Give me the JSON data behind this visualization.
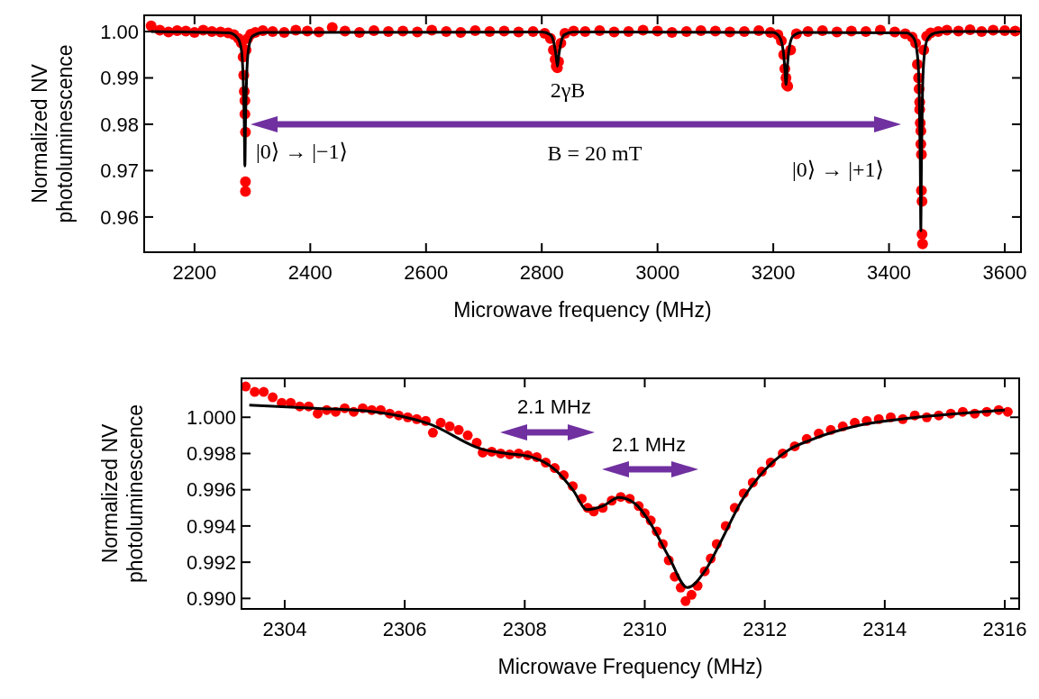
{
  "chart_data": [
    {
      "type": "scatter",
      "xlabel": "Microwave frequency (MHz)",
      "ylabel": "Normalized NV photoluminescence",
      "xlim": [
        2113,
        3628
      ],
      "xticks": [
        2200,
        2400,
        2600,
        2800,
        3000,
        3200,
        3400,
        3600
      ],
      "ylim": [
        0.9524,
        1.0035
      ],
      "yticks": [
        {
          "value": 0.96,
          "label": "0.96"
        },
        {
          "value": 0.97,
          "label": "0.97"
        },
        {
          "value": 0.98,
          "label": "0.98"
        },
        {
          "value": 0.99,
          "label": "0.99"
        },
        {
          "value": 1.0,
          "label": "1.00"
        }
      ],
      "annotations": [
        "2γB",
        "B = 20 mT",
        "|0⟩ → |−1⟩",
        "|0⟩ → |+1⟩"
      ],
      "series": [
        {
          "marker": "circle",
          "color": "#ff0000",
          "x": [
            2125,
            2140,
            2155,
            2170,
            2185,
            2200,
            2215,
            2230,
            2245,
            2258,
            2268,
            2276,
            2281,
            2284,
            2285,
            2286,
            2287,
            2287,
            2288,
            2288,
            2288,
            2289,
            2292,
            2297,
            2305,
            2318,
            2335,
            2355,
            2375,
            2395,
            2415,
            2438,
            2460,
            2485,
            2510,
            2535,
            2560,
            2585,
            2610,
            2635,
            2660,
            2685,
            2710,
            2735,
            2760,
            2785,
            2805,
            2815,
            2820,
            2823,
            2825,
            2827,
            2829,
            2833,
            2840,
            2855,
            2875,
            2900,
            2925,
            2950,
            2975,
            3000,
            3025,
            3050,
            3075,
            3100,
            3125,
            3150,
            3175,
            3195,
            3208,
            3214,
            3218,
            3220,
            3222,
            3223,
            3225,
            3230,
            3240,
            3260,
            3285,
            3310,
            3335,
            3360,
            3385,
            3410,
            3428,
            3440,
            3446,
            3449,
            3451,
            3452,
            3453,
            3453,
            3454,
            3455,
            3455,
            3456,
            3456,
            3457,
            3457,
            3458,
            3460,
            3465,
            3472,
            3485,
            3500,
            3520,
            3540,
            3560,
            3580,
            3600,
            3618
          ],
          "values": [
            1.0012,
            1.0003,
            0.9999,
            1.0002,
            1.0001,
            0.9998,
            1.0003,
            1.0,
            0.9999,
            0.9997,
            0.9993,
            0.9985,
            0.9975,
            0.9945,
            0.9906,
            0.9871,
            0.9851,
            0.9822,
            0.9783,
            0.9676,
            0.9655,
            0.996,
            0.9985,
            0.9994,
            0.9998,
            1.0002,
            1.0,
            0.9998,
            1.0003,
            1.0001,
            0.9999,
            1.0009,
            1.0001,
            0.9998,
            1.0002,
            1.0,
            1.0001,
            0.9999,
            1.0003,
            1.0,
            0.9998,
            1.0002,
            1.0,
            1.0001,
            0.9999,
            1.0,
            0.9996,
            0.9985,
            0.996,
            0.994,
            0.9925,
            0.9922,
            0.9935,
            0.9975,
            0.9996,
            1.0001,
            1.0,
            1.0002,
            0.9999,
            1.0,
            1.0003,
            1.0001,
            0.9998,
            1.0,
            1.0002,
            1.0001,
            0.9999,
            1.0,
            1.0002,
            0.9998,
            0.9993,
            0.998,
            0.995,
            0.992,
            0.99,
            0.9885,
            0.9882,
            0.996,
            0.9995,
            1.0,
            1.0002,
            0.9999,
            1.0001,
            1.0,
            1.0003,
            0.9999,
            0.9995,
            0.9988,
            0.9975,
            0.9929,
            0.99,
            0.9876,
            0.9848,
            0.9832,
            0.9803,
            0.9786,
            0.9757,
            0.9735,
            0.9657,
            0.9634,
            0.9563,
            0.9542,
            0.996,
            0.999,
            0.9997,
            1.0,
            1.0003,
            1.0001,
            1.0004,
            1.0,
            1.0003,
            1.0002,
            1.0001
          ]
        },
        {
          "type": "line",
          "color": "#000000",
          "x": [
            2125,
            2260,
            2275,
            2281,
            2284,
            2286,
            2287,
            2288,
            2290,
            2293,
            2300,
            2320,
            2800,
            2815,
            2821,
            2825,
            2827,
            2829,
            2833,
            2839,
            2855,
            3200,
            3210,
            3217,
            3220,
            3222,
            3224,
            3227,
            3234,
            3250,
            3430,
            3443,
            3449,
            3452,
            3454,
            3455,
            3456,
            3458,
            3461,
            3467,
            3480,
            3500,
            3620
          ],
          "values": [
            1.0,
            0.9997,
            0.9985,
            0.996,
            0.99,
            0.98,
            0.971,
            0.98,
            0.99,
            0.996,
            0.999,
            0.9998,
            0.9999,
            0.9993,
            0.9975,
            0.9945,
            0.9925,
            0.9945,
            0.9975,
            0.9993,
            0.9999,
            0.9998,
            0.999,
            0.996,
            0.992,
            0.9886,
            0.992,
            0.996,
            0.999,
            0.9998,
            0.9997,
            0.9985,
            0.995,
            0.988,
            0.972,
            0.957,
            0.972,
            0.988,
            0.995,
            0.9985,
            0.9997,
            1.0,
            1.0
          ]
        }
      ]
    },
    {
      "type": "scatter",
      "xlabel": "Microwave Frequency (MHz)",
      "ylabel": "Normalized NV photoluminescence",
      "xlim": [
        2303.28,
        2316.24
      ],
      "xticks": [
        2304,
        2306,
        2308,
        2310,
        2312,
        2314,
        2316
      ],
      "ylim": [
        0.98942,
        1.00215
      ],
      "yticks": [
        {
          "value": 0.99,
          "label": "0.990"
        },
        {
          "value": 0.992,
          "label": "0.992"
        },
        {
          "value": 0.994,
          "label": "0.994"
        },
        {
          "value": 0.996,
          "label": "0.996"
        },
        {
          "value": 0.998,
          "label": "0.998"
        },
        {
          "value": 1.0,
          "label": "1.000"
        }
      ],
      "annotations": [
        "2.1 MHz",
        "2.1 MHz"
      ],
      "series": [
        {
          "marker": "circle",
          "color": "#ff0000",
          "x": [
            2303.35,
            2303.5,
            2303.65,
            2303.8,
            2303.95,
            2304.1,
            2304.25,
            2304.4,
            2304.55,
            2304.7,
            2304.85,
            2305.0,
            2305.15,
            2305.3,
            2305.45,
            2305.6,
            2305.75,
            2305.9,
            2306.05,
            2306.2,
            2306.35,
            2306.47,
            2306.6,
            2306.75,
            2306.9,
            2307.05,
            2307.2,
            2307.3,
            2307.45,
            2307.6,
            2307.75,
            2307.9,
            2308.05,
            2308.2,
            2308.35,
            2308.5,
            2308.65,
            2308.8,
            2308.95,
            2309.05,
            2309.15,
            2309.3,
            2309.45,
            2309.6,
            2309.75,
            2309.9,
            2310.0,
            2310.1,
            2310.2,
            2310.3,
            2310.4,
            2310.5,
            2310.6,
            2310.68,
            2310.78,
            2310.88,
            2311.0,
            2311.1,
            2311.2,
            2311.35,
            2311.5,
            2311.65,
            2311.8,
            2311.95,
            2312.1,
            2312.3,
            2312.5,
            2312.7,
            2312.9,
            2313.1,
            2313.3,
            2313.5,
            2313.7,
            2313.9,
            2314.1,
            2314.3,
            2314.5,
            2314.7,
            2314.9,
            2315.1,
            2315.3,
            2315.5,
            2315.7,
            2315.9,
            2316.05
          ],
          "values": [
            1.0017,
            1.0014,
            1.0014,
            1.0011,
            1.0008,
            1.0008,
            1.0006,
            1.0006,
            1.0002,
            1.0004,
            1.0003,
            1.0005,
            1.0003,
            1.0005,
            1.0004,
            1.0004,
            1.0002,
            1.0001,
            1.0,
            0.9999,
            0.9998,
            0.99915,
            0.9997,
            0.9995,
            0.9993,
            0.999,
            0.9986,
            0.99805,
            0.9981,
            0.998,
            0.99795,
            0.998,
            0.9979,
            0.9978,
            0.9975,
            0.9972,
            0.9968,
            0.9962,
            0.9955,
            0.995,
            0.9948,
            0.995,
            0.9954,
            0.9956,
            0.9955,
            0.9951,
            0.9947,
            0.9943,
            0.9937,
            0.993,
            0.9921,
            0.9912,
            0.9906,
            0.98985,
            0.9902,
            0.9907,
            0.9915,
            0.9922,
            0.993,
            0.994,
            0.995,
            0.9958,
            0.9964,
            0.997,
            0.9975,
            0.998,
            0.9984,
            0.9988,
            0.9991,
            0.9993,
            0.9995,
            0.9997,
            0.9998,
            0.9999,
            1.0,
            0.9999,
            1.0001,
            1.0,
            1.0001,
            1.0002,
            1.0003,
            1.0002,
            1.0003,
            1.0004,
            1.0003
          ]
        },
        {
          "type": "line",
          "color": "#000000",
          "x": [
            2303.41,
            2304.5,
            2305.5,
            2306.41,
            2307.29,
            2307.7,
            2308.1,
            2308.53,
            2308.8,
            2309.04,
            2309.3,
            2309.57,
            2309.85,
            2310.1,
            2310.4,
            2310.71,
            2311.0,
            2311.27,
            2311.6,
            2312.02,
            2312.4,
            2312.77,
            2313.5,
            2314.27,
            2315.2,
            2316.0
          ],
          "values": [
            1.00067,
            1.0005,
            1.0003,
            0.99963,
            0.99824,
            0.998,
            0.99782,
            0.99703,
            0.996,
            0.9949,
            0.9951,
            0.99557,
            0.9952,
            0.99411,
            0.9923,
            0.9906,
            0.9915,
            0.99315,
            0.9953,
            0.99715,
            0.9982,
            0.99875,
            0.9995,
            0.9999,
            1.0002,
            1.0004
          ]
        }
      ]
    }
  ]
}
